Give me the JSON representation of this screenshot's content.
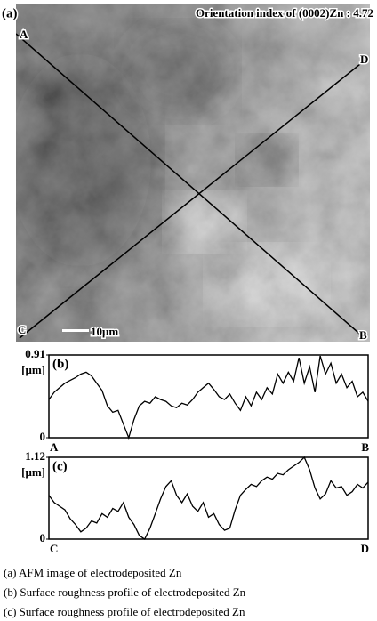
{
  "panel_a": {
    "label": "(a)",
    "title": "Orientation index of (0002)Zn : 4.72",
    "corner_top_left": "A",
    "corner_top_right": "D",
    "corner_bottom_left": "C",
    "corner_bottom_right": "B",
    "scale_bar": "10μm"
  },
  "chart_data": [
    {
      "type": "line",
      "label": "(b)",
      "y_unit": "[μm]",
      "ylim": [
        0,
        0.91
      ],
      "yticks": [
        0,
        0.91
      ],
      "x_start": "A",
      "x_end": "B",
      "values": [
        0.42,
        0.5,
        0.55,
        0.6,
        0.63,
        0.66,
        0.7,
        0.72,
        0.68,
        0.6,
        0.52,
        0.35,
        0.28,
        0.3,
        0.15,
        0.0,
        0.2,
        0.35,
        0.4,
        0.38,
        0.45,
        0.42,
        0.4,
        0.35,
        0.33,
        0.38,
        0.36,
        0.42,
        0.5,
        0.55,
        0.6,
        0.53,
        0.45,
        0.42,
        0.48,
        0.38,
        0.3,
        0.45,
        0.35,
        0.5,
        0.42,
        0.55,
        0.48,
        0.7,
        0.6,
        0.72,
        0.62,
        0.88,
        0.6,
        0.78,
        0.5,
        0.9,
        0.7,
        0.82,
        0.6,
        0.7,
        0.55,
        0.62,
        0.45,
        0.5,
        0.4
      ]
    },
    {
      "type": "line",
      "label": "(c)",
      "y_unit": "[μm]",
      "ylim": [
        0,
        1.12
      ],
      "yticks": [
        0,
        1.12
      ],
      "x_start": "C",
      "x_end": "D",
      "values": [
        0.6,
        0.5,
        0.45,
        0.4,
        0.28,
        0.2,
        0.1,
        0.15,
        0.25,
        0.22,
        0.35,
        0.3,
        0.42,
        0.38,
        0.5,
        0.3,
        0.2,
        0.05,
        0.0,
        0.15,
        0.35,
        0.55,
        0.72,
        0.8,
        0.6,
        0.5,
        0.62,
        0.45,
        0.38,
        0.5,
        0.3,
        0.35,
        0.2,
        0.12,
        0.15,
        0.4,
        0.6,
        0.68,
        0.75,
        0.72,
        0.8,
        0.85,
        0.82,
        0.9,
        0.88,
        0.95,
        1.0,
        1.05,
        1.12,
        0.95,
        0.7,
        0.55,
        0.62,
        0.8,
        0.7,
        0.72,
        0.6,
        0.65,
        0.75,
        0.7,
        0.78
      ]
    }
  ],
  "captions": [
    "(a) AFM image of electrodeposited Zn",
    "(b) Surface roughness profile of electrodeposited Zn",
    "(c) Surface roughness profile of electrodeposited Zn"
  ]
}
